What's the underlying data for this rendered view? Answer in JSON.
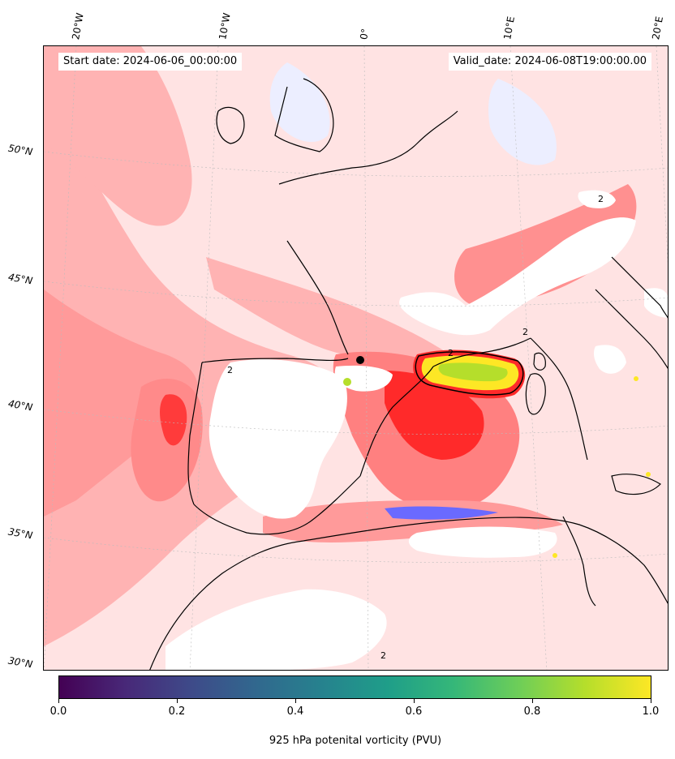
{
  "map": {
    "start_date": "Start date: 2024-06-06_00:00:00",
    "valid_date": "Valid_date: 2024-06-08T19:00:00.00",
    "lon_labels": [
      "20°W",
      "10°W",
      "0°",
      "10°E",
      "20°E"
    ],
    "lat_labels": [
      "50°N",
      "45°N",
      "40°N",
      "35°N",
      "30°N"
    ],
    "contour_label": "2",
    "colors": {
      "field_light": "#ffe3e3",
      "field_mid": "#ffb3b3",
      "field_strong": "#ff7777",
      "field_max": "#ff2a2a",
      "negative": "#e6e8ff",
      "negative_strong": "#2b2bff",
      "masked": "#ffffff",
      "coastline": "#000000",
      "highlight_green": "#b5de2b",
      "highlight_yellow": "#fde725"
    }
  },
  "colorbar": {
    "title": "925 hPa potenital vorticity (PVU)",
    "ticks": [
      "0.0",
      "0.2",
      "0.4",
      "0.6",
      "0.8",
      "1.0"
    ],
    "range": [
      0.0,
      1.0
    ],
    "colormap": "viridis"
  }
}
